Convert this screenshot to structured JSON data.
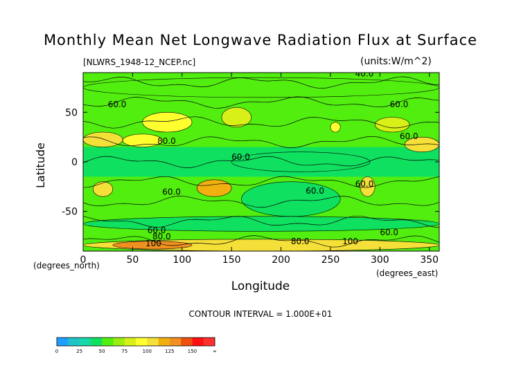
{
  "chart_data": {
    "type": "heatmap",
    "title": "Monthly Mean Net Longwave Radiation Flux at Surface",
    "subtitle_left": "[NLWRS_1948-12_NCEP.nc]",
    "subtitle_right": "(units:W/m^2)",
    "xlabel": "Longitude",
    "ylabel": "Latitude",
    "x_unit_label": "(degrees_east)",
    "y_unit_label": "(degrees_north)",
    "xlim": [
      0,
      360
    ],
    "ylim": [
      -90,
      90
    ],
    "x_ticks": [
      0,
      50,
      100,
      150,
      200,
      250,
      300,
      350
    ],
    "y_ticks": [
      50,
      0,
      -50
    ],
    "contour_interval_text": "CONTOUR INTERVAL = 1.000E+01",
    "contour_labels": [
      {
        "text": "40.0",
        "lon": 275,
        "lat": 86
      },
      {
        "text": "60.0",
        "lon": 310,
        "lat": 55
      },
      {
        "text": "60.0",
        "lon": 320,
        "lat": 23
      },
      {
        "text": "80.0",
        "lon": 75,
        "lat": 18
      },
      {
        "text": "60.0",
        "lon": 150,
        "lat": 2
      },
      {
        "text": "60.0",
        "lon": 80,
        "lat": -33
      },
      {
        "text": "60.0",
        "lon": 225,
        "lat": -32
      },
      {
        "text": "60.0",
        "lon": 275,
        "lat": -25
      },
      {
        "text": "60.0",
        "lon": 65,
        "lat": -72
      },
      {
        "text": "80.0",
        "lon": 70,
        "lat": -78
      },
      {
        "text": "100",
        "lon": 63,
        "lat": -85
      },
      {
        "text": "80.0",
        "lon": 210,
        "lat": -83
      },
      {
        "text": "100",
        "lon": 262,
        "lat": -83
      },
      {
        "text": "60.0",
        "lon": 300,
        "lat": -74
      },
      {
        "text": "60.0",
        "lon": 25,
        "lat": 55
      }
    ],
    "colorbar": {
      "levels": [
        "0",
        "25",
        "50",
        "75",
        "100",
        "125",
        "150",
        "∞"
      ],
      "colors": [
        "#1e9fff",
        "#1fc3c8",
        "#18d7a8",
        "#10e060",
        "#52ee10",
        "#9aef10",
        "#d8f018",
        "#ffff30",
        "#f4e038",
        "#f0b010",
        "#f09020",
        "#ee5010",
        "#ff1010",
        "#ff3030"
      ]
    },
    "field": {
      "description_levels": "value bins mapped to colorbar colors",
      "regions": [
        {
          "lon": [
            0,
            360
          ],
          "lat": [
            -90,
            90
          ],
          "value": 60
        },
        {
          "lon": [
            0,
            360
          ],
          "lat": [
            -15,
            15
          ],
          "value": 48
        },
        {
          "lon": [
            150,
            290
          ],
          "lat": [
            -10,
            10
          ],
          "value": 42
        },
        {
          "lon": [
            160,
            260
          ],
          "lat": [
            -55,
            -20
          ],
          "value": 40
        },
        {
          "lon": [
            0,
            360
          ],
          "lat": [
            -70,
            -55
          ],
          "value": 45
        },
        {
          "lon": [
            0,
            360
          ],
          "lat": [
            65,
            85
          ],
          "value": 50
        },
        {
          "lon": [
            0,
            40
          ],
          "lat": [
            15,
            30
          ],
          "value": 100
        },
        {
          "lon": [
            40,
            80
          ],
          "lat": [
            15,
            28
          ],
          "value": 90
        },
        {
          "lon": [
            60,
            110
          ],
          "lat": [
            30,
            50
          ],
          "value": 95
        },
        {
          "lon": [
            140,
            170
          ],
          "lat": [
            35,
            55
          ],
          "value": 80
        },
        {
          "lon": [
            250,
            260
          ],
          "lat": [
            30,
            40
          ],
          "value": 90
        },
        {
          "lon": [
            295,
            330
          ],
          "lat": [
            30,
            45
          ],
          "value": 80
        },
        {
          "lon": [
            325,
            360
          ],
          "lat": [
            10,
            25
          ],
          "value": 110
        },
        {
          "lon": [
            10,
            30
          ],
          "lat": [
            -35,
            -20
          ],
          "value": 110
        },
        {
          "lon": [
            115,
            150
          ],
          "lat": [
            -35,
            -18
          ],
          "value": 120
        },
        {
          "lon": [
            280,
            295
          ],
          "lat": [
            -35,
            -15
          ],
          "value": 110
        },
        {
          "lon": [
            0,
            360
          ],
          "lat": [
            -90,
            -78
          ],
          "value": 110
        },
        {
          "lon": [
            30,
            110
          ],
          "lat": [
            -88,
            -80
          ],
          "value": 125
        }
      ]
    }
  }
}
